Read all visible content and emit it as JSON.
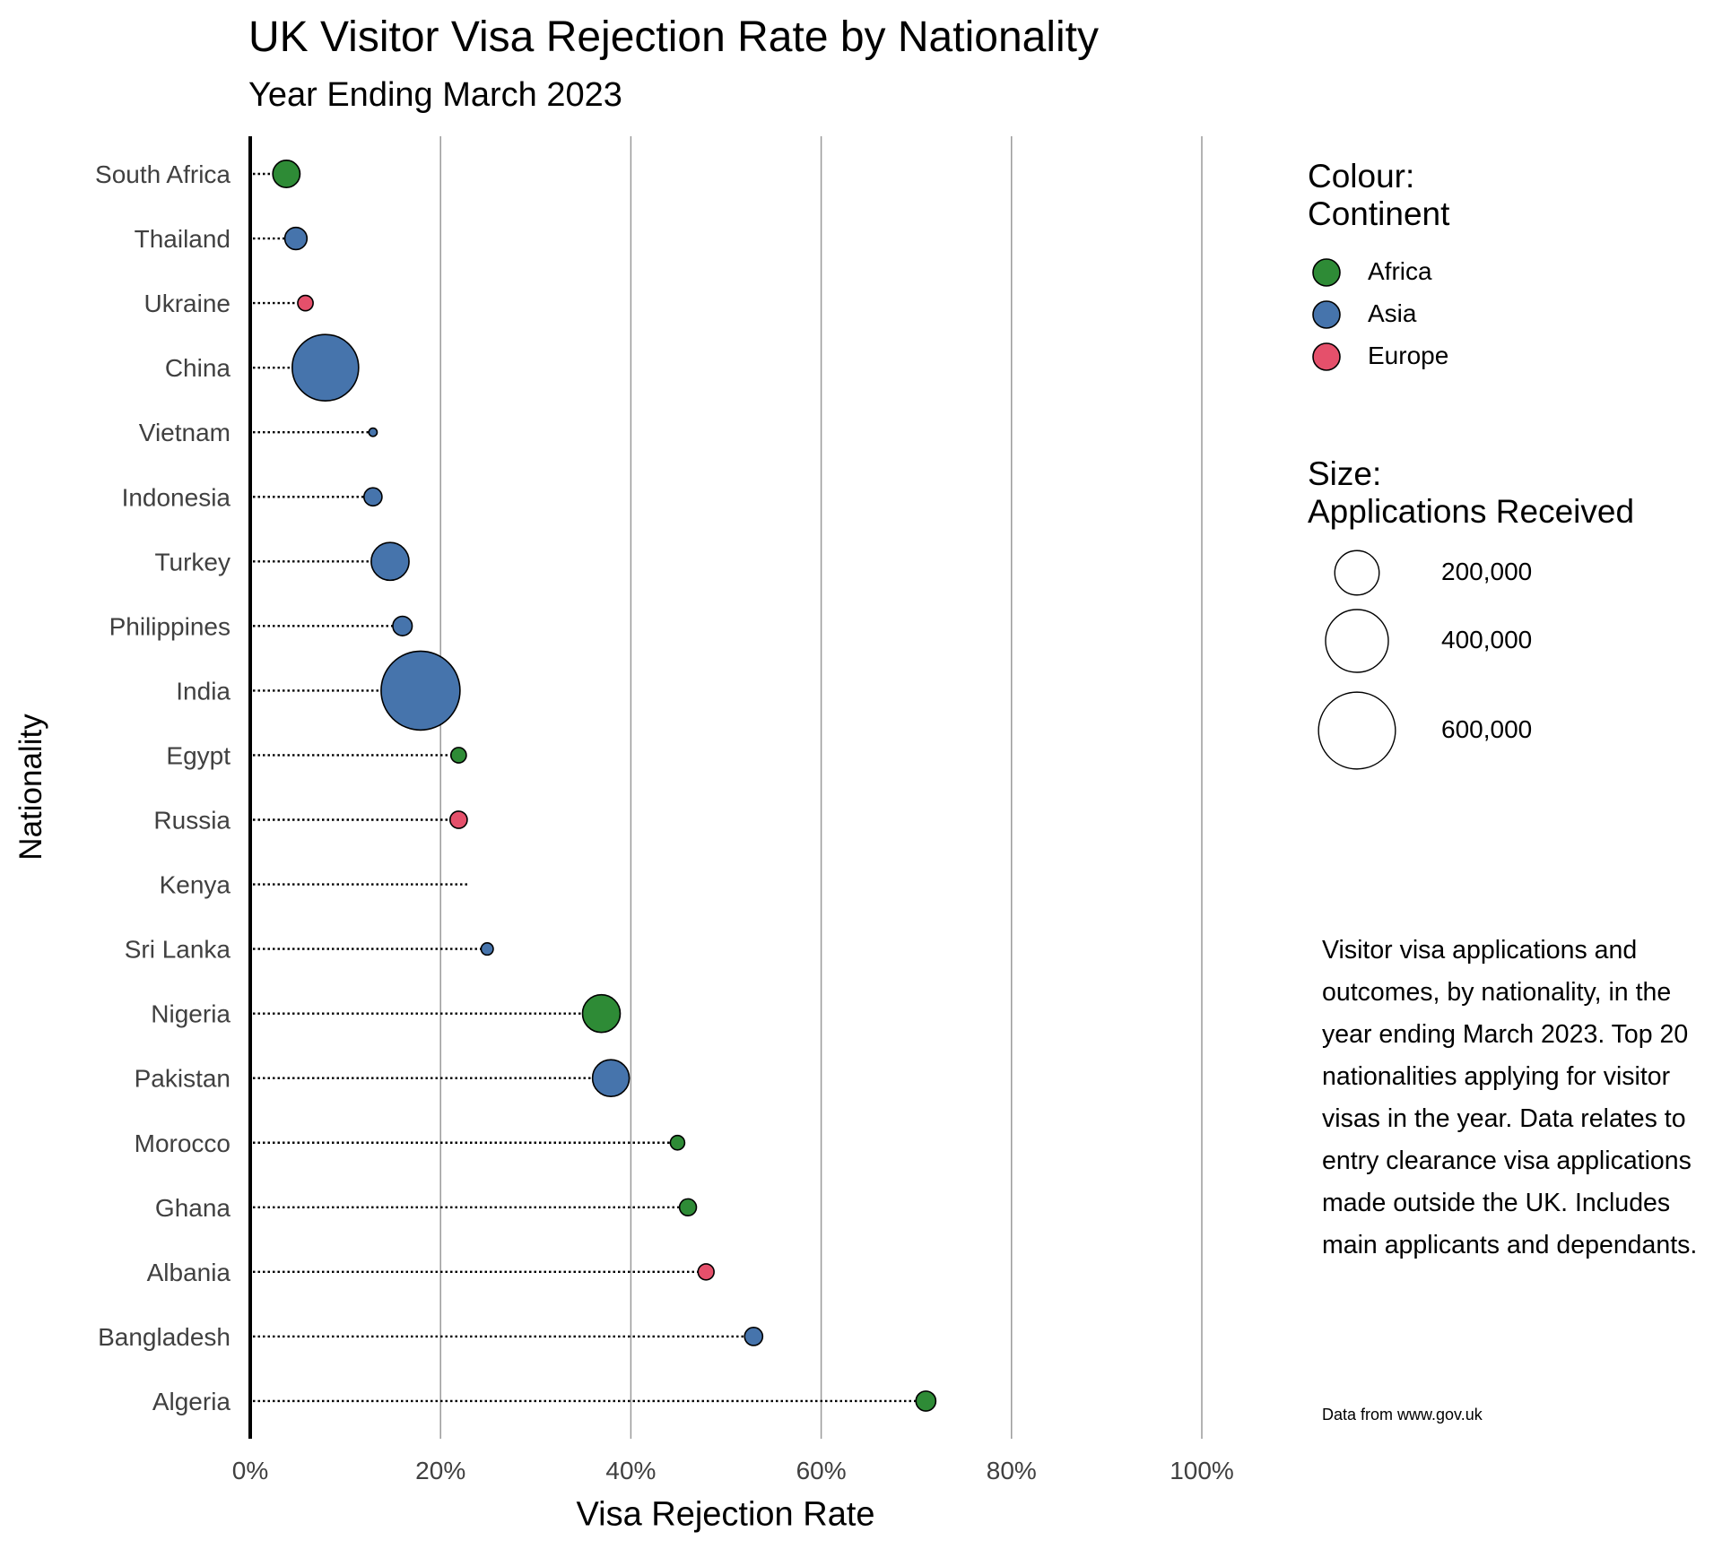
{
  "header": {
    "title": "UK Visitor Visa Rejection Rate by Nationality",
    "subtitle": "Year Ending March 2023"
  },
  "axes": {
    "x_title": "Visa Rejection Rate",
    "y_title": "Nationality",
    "x_ticks": [
      "0%",
      "20%",
      "40%",
      "60%",
      "80%",
      "100%"
    ]
  },
  "legend": {
    "colour_title": "Colour:\nContinent",
    "colour_items": [
      {
        "label": "Africa",
        "color": "#2E8B36"
      },
      {
        "label": "Asia",
        "color": "#4674AC"
      },
      {
        "label": "Europe",
        "color": "#E5506B"
      }
    ],
    "size_title": "Size:\nApplications Received",
    "size_items": [
      {
        "label": "200,000",
        "value": 200000
      },
      {
        "label": "400,000",
        "value": 400000
      },
      {
        "label": "600,000",
        "value": 600000
      }
    ]
  },
  "note": {
    "description": "Visitor visa applications and outcomes, by nationality, in the year ending March 2023. Top 20 nationalities applying for visitor visas in the year. Data relates to entry clearance visa applications made outside the UK. Includes main applicants and dependants.",
    "source": "Data from www.gov.uk"
  },
  "chart_data": {
    "type": "scatter",
    "subtype": "lollipop-bubble",
    "title": "UK Visitor Visa Rejection Rate by Nationality",
    "subtitle": "Year Ending March 2023",
    "xlabel": "Visa Rejection Rate",
    "ylabel": "Nationality",
    "xlim": [
      0,
      100
    ],
    "x_unit": "%",
    "grid": "vertical major gridlines at 20% steps",
    "legend_position": "right",
    "color_encoding": "Continent",
    "size_encoding": "Applications Received",
    "categories": [
      "South Africa",
      "Thailand",
      "Ukraine",
      "China",
      "Vietnam",
      "Indonesia",
      "Turkey",
      "Philippines",
      "India",
      "Egypt",
      "Russia",
      "Kenya",
      "Sri Lanka",
      "Nigeria",
      "Pakistan",
      "Morocco",
      "Ghana",
      "Albania",
      "Bangladesh",
      "Algeria"
    ],
    "points": [
      {
        "nationality": "South Africa",
        "rejection_rate": 3.8,
        "applications": 75000,
        "continent": "Africa"
      },
      {
        "nationality": "Thailand",
        "rejection_rate": 4.8,
        "applications": 50000,
        "continent": "Asia"
      },
      {
        "nationality": "Ukraine",
        "rejection_rate": 5.8,
        "applications": 24000,
        "continent": "Europe"
      },
      {
        "nationality": "China",
        "rejection_rate": 7.9,
        "applications": 447000,
        "continent": "Asia"
      },
      {
        "nationality": "Vietnam",
        "rejection_rate": 12.9,
        "applications": 7000,
        "continent": "Asia"
      },
      {
        "nationality": "Indonesia",
        "rejection_rate": 12.9,
        "applications": 33000,
        "continent": "Asia"
      },
      {
        "nationality": "Turkey",
        "rejection_rate": 14.7,
        "applications": 145000,
        "continent": "Asia"
      },
      {
        "nationality": "Philippines",
        "rejection_rate": 16.0,
        "applications": 38000,
        "continent": "Asia"
      },
      {
        "nationality": "India",
        "rejection_rate": 17.9,
        "applications": 632000,
        "continent": "Asia"
      },
      {
        "nationality": "Egypt",
        "rejection_rate": 21.9,
        "applications": 24000,
        "continent": "Africa"
      },
      {
        "nationality": "Russia",
        "rejection_rate": 21.9,
        "applications": 30000,
        "continent": "Europe"
      },
      {
        "nationality": "Kenya",
        "rejection_rate": 23.0,
        "applications": null,
        "continent": null
      },
      {
        "nationality": "Sri Lanka",
        "rejection_rate": 24.9,
        "applications": 15000,
        "continent": "Asia"
      },
      {
        "nationality": "Nigeria",
        "rejection_rate": 36.9,
        "applications": 144000,
        "continent": "Africa"
      },
      {
        "nationality": "Pakistan",
        "rejection_rate": 37.9,
        "applications": 137000,
        "continent": "Asia"
      },
      {
        "nationality": "Morocco",
        "rejection_rate": 44.9,
        "applications": 21000,
        "continent": "Africa"
      },
      {
        "nationality": "Ghana",
        "rejection_rate": 46.0,
        "applications": 29000,
        "continent": "Africa"
      },
      {
        "nationality": "Albania",
        "rejection_rate": 47.9,
        "applications": 26000,
        "continent": "Europe"
      },
      {
        "nationality": "Bangladesh",
        "rejection_rate": 52.9,
        "applications": 33000,
        "continent": "Asia"
      },
      {
        "nationality": "Algeria",
        "rejection_rate": 71.0,
        "applications": 40000,
        "continent": "Africa"
      }
    ]
  }
}
